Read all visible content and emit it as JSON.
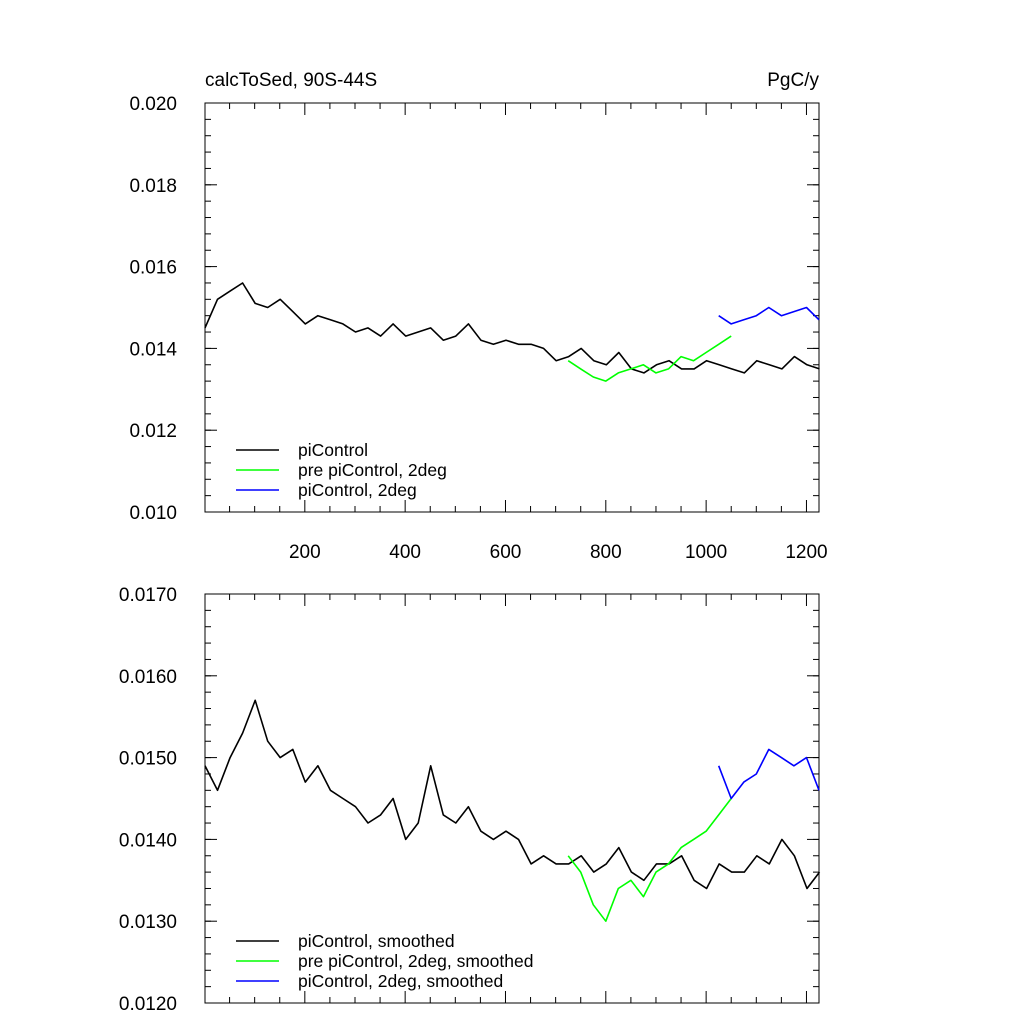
{
  "figure": {
    "left_title": "calcToSed, 90S-44S",
    "right_title": "PgC/y"
  },
  "chart_data": [
    {
      "type": "line",
      "xlim": [
        1,
        1225
      ],
      "ylim": [
        0.01,
        0.02
      ],
      "x_ticks": [
        200,
        400,
        600,
        800,
        1000,
        1200
      ],
      "x_tick_labels": [
        "200",
        "400",
        "600",
        "800",
        "1000",
        "1200"
      ],
      "y_ticks": [
        0.01,
        0.012,
        0.014,
        0.016,
        0.018,
        0.02
      ],
      "y_tick_labels": [
        "0.010",
        "0.012",
        "0.014",
        "0.016",
        "0.018",
        "0.020"
      ],
      "grid": false,
      "legend_position": "bottom-left",
      "series": [
        {
          "name": "piControl",
          "color": "#000000",
          "x_start": 1,
          "x_step": 25,
          "values": [
            0.0145,
            0.0152,
            0.0154,
            0.0156,
            0.0151,
            0.015,
            0.0152,
            0.0149,
            0.0146,
            0.0148,
            0.0147,
            0.0146,
            0.0144,
            0.0145,
            0.0143,
            0.0146,
            0.0143,
            0.0144,
            0.0145,
            0.0142,
            0.0143,
            0.0146,
            0.0142,
            0.0141,
            0.0142,
            0.0141,
            0.0141,
            0.014,
            0.0137,
            0.0138,
            0.014,
            0.0137,
            0.0136,
            0.0139,
            0.0135,
            0.0134,
            0.0136,
            0.0137,
            0.0135,
            0.0135,
            0.0137,
            0.0136,
            0.0135,
            0.0134,
            0.0137,
            0.0136,
            0.0135,
            0.0138,
            0.0136,
            0.0135
          ]
        },
        {
          "name": "pre piControl, 2deg",
          "color": "#00ff00",
          "x_start": 725,
          "x_step": 25,
          "values": [
            0.0137,
            0.0135,
            0.0133,
            0.0132,
            0.0134,
            0.0135,
            0.0136,
            0.0134,
            0.0135,
            0.0138,
            0.0137,
            0.0139,
            0.0141,
            0.0143
          ]
        },
        {
          "name": "piControl, 2deg",
          "color": "#0000ff",
          "x_start": 1025,
          "x_step": 25,
          "values": [
            0.0148,
            0.0146,
            0.0147,
            0.0148,
            0.015,
            0.0148,
            0.0149,
            0.015,
            0.0147
          ]
        }
      ]
    },
    {
      "type": "line",
      "xlim": [
        1,
        1225
      ],
      "ylim": [
        0.012,
        0.017
      ],
      "y_ticks": [
        0.012,
        0.013,
        0.014,
        0.015,
        0.016,
        0.017
      ],
      "y_tick_labels": [
        "0.0120",
        "0.0130",
        "0.0140",
        "0.0150",
        "0.0160",
        "0.0170"
      ],
      "grid": false,
      "legend_position": "bottom-left",
      "series": [
        {
          "name": "piControl, smoothed",
          "color": "#000000",
          "x_start": 1,
          "x_step": 25,
          "values": [
            0.0149,
            0.0146,
            0.015,
            0.0153,
            0.0157,
            0.0152,
            0.015,
            0.0151,
            0.0147,
            0.0149,
            0.0146,
            0.0145,
            0.0144,
            0.0142,
            0.0143,
            0.0145,
            0.014,
            0.0142,
            0.0149,
            0.0143,
            0.0142,
            0.0144,
            0.0141,
            0.014,
            0.0141,
            0.014,
            0.0137,
            0.0138,
            0.0137,
            0.0137,
            0.0138,
            0.0136,
            0.0137,
            0.0139,
            0.0136,
            0.0135,
            0.0137,
            0.0137,
            0.0138,
            0.0135,
            0.0134,
            0.0137,
            0.0136,
            0.0136,
            0.0138,
            0.0137,
            0.014,
            0.0138,
            0.0134,
            0.0136
          ]
        },
        {
          "name": "pre piControl, 2deg, smoothed",
          "color": "#00ff00",
          "x_start": 725,
          "x_step": 25,
          "values": [
            0.0138,
            0.0136,
            0.0132,
            0.013,
            0.0134,
            0.0135,
            0.0133,
            0.0136,
            0.0137,
            0.0139,
            0.014,
            0.0141,
            0.0143,
            0.0145
          ]
        },
        {
          "name": "piControl, 2deg, smoothed",
          "color": "#0000ff",
          "x_start": 1025,
          "x_step": 25,
          "values": [
            0.0149,
            0.0145,
            0.0147,
            0.0148,
            0.0151,
            0.015,
            0.0149,
            0.015,
            0.0146
          ]
        }
      ]
    }
  ]
}
